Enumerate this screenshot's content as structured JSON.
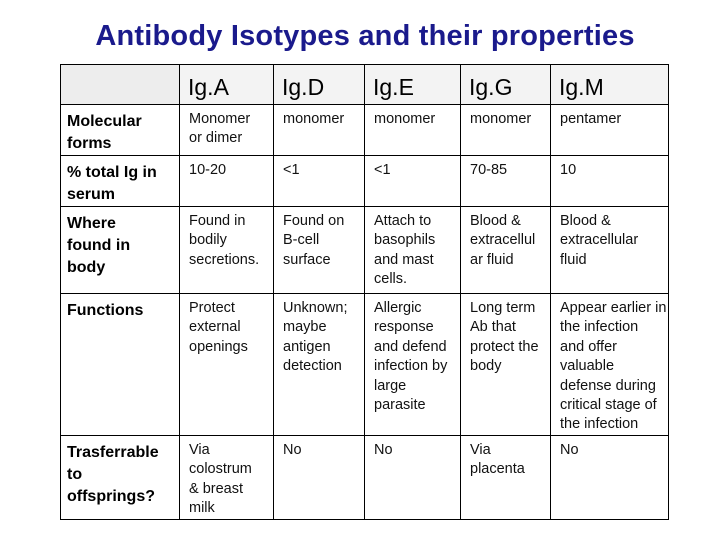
{
  "title": "Antibody Isotypes and their properties",
  "columns": [
    "Ig.A",
    "Ig.D",
    "Ig.E",
    "Ig.G",
    "Ig.M"
  ],
  "rows": [
    {
      "label": [
        "Molecular",
        "forms"
      ],
      "cells": [
        [
          "Monomer",
          "or dimer"
        ],
        [
          "monomer"
        ],
        [
          "monomer"
        ],
        [
          "monomer"
        ],
        [
          "pentamer"
        ]
      ]
    },
    {
      "label": [
        "% total Ig in",
        "serum"
      ],
      "cells": [
        [
          "10-20"
        ],
        [
          "<1"
        ],
        [
          "<1"
        ],
        [
          "70-85"
        ],
        [
          "10"
        ]
      ]
    },
    {
      "label": [
        "Where",
        "found in",
        "body"
      ],
      "cells": [
        [
          "Found in",
          "bodily",
          "secretions."
        ],
        [
          "Found on",
          "B-cell",
          "surface"
        ],
        [
          "Attach to",
          "basophils",
          "and mast",
          "cells."
        ],
        [
          "Blood &",
          "extracellul",
          "ar fluid"
        ],
        [
          "Blood &",
          "extracellular",
          "fluid"
        ]
      ]
    },
    {
      "label": [
        "Functions"
      ],
      "cells": [
        [
          "Protect",
          "external",
          "openings"
        ],
        [
          "Unknown;",
          "maybe",
          "antigen",
          "detection"
        ],
        [
          "Allergic",
          "response",
          "and defend",
          "infection by",
          "large",
          "parasite"
        ],
        [
          "Long term",
          "Ab that",
          "protect the",
          "body"
        ],
        [
          "Appear earlier in",
          "the infection",
          "and offer",
          "valuable",
          "defense during",
          "critical stage of",
          "the infection"
        ]
      ]
    },
    {
      "label": [
        "Trasferrable",
        "to",
        "offsprings?"
      ],
      "cells": [
        [
          "Via",
          "colostrum",
          "& breast",
          "milk"
        ],
        [
          "No"
        ],
        [
          "No"
        ],
        [
          "Via",
          "placenta"
        ],
        [
          "No"
        ]
      ]
    }
  ]
}
